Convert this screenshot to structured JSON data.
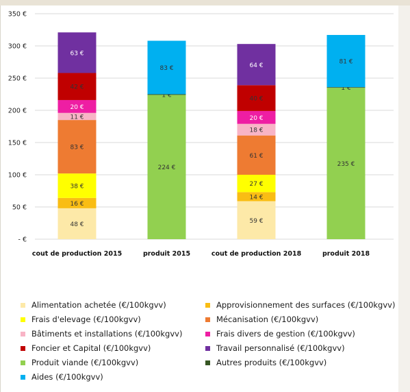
{
  "chart_data": {
    "type": "bar",
    "stacked": true,
    "ylim": [
      0,
      350
    ],
    "y_ticks": [
      0,
      50,
      100,
      150,
      200,
      250,
      300,
      350
    ],
    "y_tick_labels": [
      "-  €",
      "50 €",
      "100 €",
      "150 €",
      "200 €",
      "250 €",
      "300 €",
      "350 €"
    ],
    "grid": true,
    "legend_position": "bottom",
    "categories": [
      "cout de production 2015",
      "produit 2015",
      "cout de production 2018",
      "produit 2018"
    ],
    "series": [
      {
        "name": "Alimentation achetée (€/100kgvv)",
        "color": "#fde9a8",
        "text_color": "#333333",
        "values": [
          48,
          0,
          59,
          0
        ],
        "labels": [
          "48 €",
          "",
          "59 €",
          ""
        ]
      },
      {
        "name": "Approvisionnement  des surfaces (€/100kgvv)",
        "color": "#f9bd14",
        "text_color": "#333333",
        "values": [
          16,
          0,
          14,
          0
        ],
        "labels": [
          "16 €",
          "",
          "14 €",
          ""
        ]
      },
      {
        "name": "Frais d'elevage (€/100kgvv)",
        "color": "#ffff00",
        "text_color": "#333333",
        "values": [
          38,
          0,
          27,
          0
        ],
        "labels": [
          "38 €",
          "",
          "27 €",
          ""
        ]
      },
      {
        "name": "Mécanisation (€/100kgvv)",
        "color": "#ee7b32",
        "text_color": "#333333",
        "values": [
          83,
          0,
          61,
          0
        ],
        "labels": [
          "83 €",
          "",
          "61 €",
          ""
        ]
      },
      {
        "name": "Bâtiments et installations (€/100kgvv)",
        "color": "#f8b4c6",
        "text_color": "#333333",
        "values": [
          11,
          0,
          18,
          0
        ],
        "labels": [
          "11 €",
          "",
          "18 €",
          ""
        ]
      },
      {
        "name": "Frais divers de gestion (€/100kgvv)",
        "color": "#ee1ea3",
        "text_color": "#ffffff",
        "values": [
          20,
          0,
          20,
          0
        ],
        "labels": [
          "20 €",
          "",
          "20 €",
          ""
        ]
      },
      {
        "name": "Foncier et Capital (€/100kgvv)",
        "color": "#c00000",
        "text_color": "#333333",
        "values": [
          42,
          0,
          40,
          0
        ],
        "labels": [
          "42 €",
          "",
          "40 €",
          ""
        ]
      },
      {
        "name": "Travail personnalisé (€/100kgvv)",
        "color": "#7030a0",
        "text_color": "#ffffff",
        "values": [
          63,
          0,
          64,
          0
        ],
        "labels": [
          "63 €",
          "",
          "64 €",
          ""
        ]
      },
      {
        "name": "Produit viande (€/100kgvv)",
        "color": "#92d050",
        "text_color": "#333333",
        "values": [
          0,
          224,
          0,
          235
        ],
        "labels": [
          "",
          "224 €",
          "",
          "235 €"
        ]
      },
      {
        "name": "Autres produits (€/100kgvv)",
        "color": "#375623",
        "text_color": "#333333",
        "values": [
          0,
          1,
          0,
          1
        ],
        "labels": [
          "",
          "1 €",
          "",
          "1 €"
        ]
      },
      {
        "name": "Aides (€/100kgvv)",
        "color": "#00b0f0",
        "text_color": "#333333",
        "values": [
          0,
          83,
          0,
          81
        ],
        "labels": [
          "",
          "83 €",
          "",
          "81 €"
        ]
      }
    ],
    "legend_order": [
      0,
      1,
      2,
      3,
      4,
      5,
      6,
      7,
      8,
      9,
      10
    ]
  }
}
